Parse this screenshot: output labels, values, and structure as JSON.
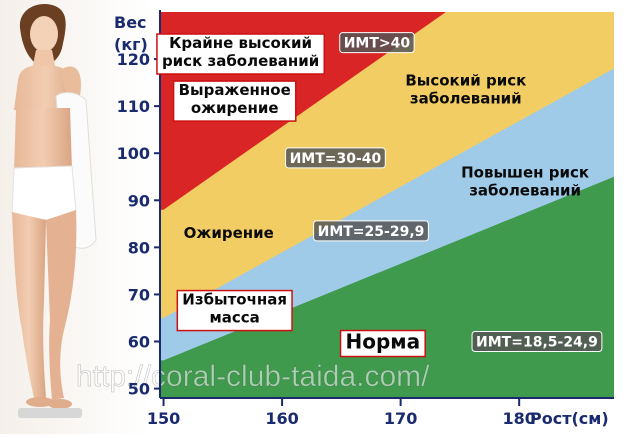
{
  "chart_data": {
    "type": "area",
    "title": "",
    "xlabel": "Рост(см)",
    "ylabel": "Вес (кг)",
    "ylabel_lines": [
      "Вес",
      "(кг)"
    ],
    "xlim": [
      149.7,
      188
    ],
    "ylim": [
      48,
      130
    ],
    "x_ticks": [
      150,
      160,
      170,
      180
    ],
    "y_ticks": [
      50,
      60,
      70,
      80,
      90,
      100,
      110,
      120
    ],
    "zones": [
      {
        "name": "Норма",
        "color": "#3f9a4e",
        "boundary_from_x": 150,
        "boundary_to_x": 188,
        "boundary_from_y": 56,
        "boundary_to_y": 95
      },
      {
        "name": "Избыточная масса",
        "color": "#9fcbe8",
        "boundary_from_x": 150,
        "boundary_to_x": 188,
        "boundary_from_y": 65,
        "boundary_to_y": 118
      },
      {
        "name": "Ожирение",
        "color": "#f2cd64",
        "boundary_from_x": 150,
        "boundary_to_x": 188,
        "boundary_from_y": 88,
        "boundary_to_y": 155
      },
      {
        "name": "Выраженное ожирение",
        "color": "#d92525"
      }
    ],
    "zone_labels": [
      {
        "id": "extreme",
        "lines": [
          "Крайне высокий",
          "риск заболеваний"
        ],
        "x": 156.5,
        "y": 121.5,
        "boxed": true
      },
      {
        "id": "severe",
        "lines": [
          "Выраженное",
          "ожирение"
        ],
        "x": 156.0,
        "y": 111.5,
        "boxed": true
      },
      {
        "id": "high",
        "lines": [
          "Высокий риск",
          "заболеваний"
        ],
        "x": 175.5,
        "y": 113.5,
        "boxed": false
      },
      {
        "id": "obesity",
        "lines": [
          "Ожирение"
        ],
        "x": 155.5,
        "y": 83.0,
        "boxed": false
      },
      {
        "id": "elevated",
        "lines": [
          "Повышен риск",
          "заболеваний"
        ],
        "x": 180.5,
        "y": 94.0,
        "boxed": false
      },
      {
        "id": "overweight",
        "lines": [
          "Избыточная",
          "масса"
        ],
        "x": 156.0,
        "y": 67.0,
        "boxed": true
      },
      {
        "id": "normal",
        "lines": [
          "Норма"
        ],
        "x": 168.5,
        "y": 60.0,
        "boxed": true
      }
    ],
    "bmi_labels": [
      {
        "text": "ИМТ>40",
        "x": 168.0,
        "y": 123.5
      },
      {
        "text": "ИМТ=30-40",
        "x": 164.5,
        "y": 99.0
      },
      {
        "text": "ИМТ=25-29,9",
        "x": 167.5,
        "y": 83.5
      },
      {
        "text": "ИМТ=18,5-24,9",
        "x": 181.5,
        "y": 60.0
      }
    ],
    "watermark": "http://coral-club-taida.com/"
  },
  "colors": {
    "axis": "#1a2a6e",
    "tick_text": "#1a2a6e",
    "label_text": "#0a0a0a",
    "box_fill": "#ffffff",
    "box_stroke": "#cc1111",
    "bmi_fill": "#555555",
    "bmi_text": "#ffffff"
  }
}
